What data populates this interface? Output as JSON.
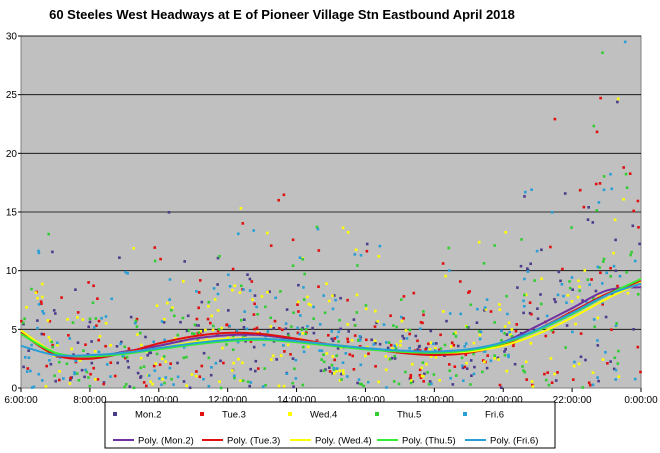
{
  "chart_data": {
    "type": "scatter",
    "title": "60 Steeles West Headways at E of Pioneer Village Stn Eastbound April 2018",
    "xlabel": "",
    "ylabel": "",
    "x_ticks": [
      "6:00:00",
      "8:00:00",
      "10:00:00",
      "12:00:00",
      "14:00:00",
      "16:00:00",
      "18:00:00",
      "20:00:00",
      "22:00:00",
      "0:00:00"
    ],
    "y_ticks": [
      "0",
      "5",
      "10",
      "15",
      "20",
      "25",
      "30"
    ],
    "xlim": [
      "6:00:00",
      "0:00:00"
    ],
    "ylim": [
      0,
      30
    ],
    "grid": "horizontal",
    "plot_background": "#c0c0c0",
    "legend_position": "bottom",
    "series": [
      {
        "name": "Mon.2",
        "color": "#4b3c8c",
        "marker": "diamond"
      },
      {
        "name": "Tue.3",
        "color": "#e01010",
        "marker": "square"
      },
      {
        "name": "Wed.4",
        "color": "#ffff00",
        "marker": "triangle"
      },
      {
        "name": "Thu.5",
        "color": "#33cc33",
        "marker": "triangle"
      },
      {
        "name": "Fri.6",
        "color": "#2a9fd6",
        "marker": "circle"
      }
    ],
    "trendlines": [
      {
        "name": "Poly. (Mon.2)",
        "color": "#7030a0",
        "x": [
          "6:00:00",
          "7:00:00",
          "8:00:00",
          "9:00:00",
          "10:00:00",
          "11:00:00",
          "12:00:00",
          "13:00:00",
          "14:00:00",
          "15:00:00",
          "16:00:00",
          "17:00:00",
          "18:00:00",
          "19:00:00",
          "20:00:00",
          "21:00:00",
          "22:00:00",
          "23:00:00",
          "0:00:00"
        ],
        "y": [
          4.8,
          2.9,
          2.6,
          3.1,
          3.6,
          4.2,
          4.5,
          4.5,
          4.1,
          3.7,
          3.4,
          3.1,
          2.9,
          3.1,
          3.9,
          5.3,
          6.8,
          8.3,
          8.6
        ]
      },
      {
        "name": "Poly. (Tue.3)",
        "color": "#e01010",
        "x": [
          "6:00:00",
          "7:00:00",
          "8:00:00",
          "9:00:00",
          "10:00:00",
          "11:00:00",
          "12:00:00",
          "13:00:00",
          "14:00:00",
          "15:00:00",
          "16:00:00",
          "17:00:00",
          "18:00:00",
          "19:00:00",
          "20:00:00",
          "21:00:00",
          "22:00:00",
          "23:00:00",
          "0:00:00"
        ],
        "y": [
          4.7,
          2.8,
          2.5,
          3.0,
          3.8,
          4.4,
          4.7,
          4.6,
          4.2,
          3.7,
          3.4,
          3.0,
          2.8,
          3.0,
          3.7,
          5.0,
          6.5,
          8.0,
          9.1
        ]
      },
      {
        "name": "Poly. (Wed.4)",
        "color": "#ffff00",
        "x": [
          "6:00:00",
          "7:00:00",
          "8:00:00",
          "9:00:00",
          "10:00:00",
          "11:00:00",
          "12:00:00",
          "13:00:00",
          "14:00:00",
          "15:00:00",
          "16:00:00",
          "17:00:00",
          "18:00:00",
          "19:00:00",
          "20:00:00",
          "21:00:00",
          "22:00:00",
          "23:00:00",
          "0:00:00"
        ],
        "y": [
          4.9,
          3.0,
          2.7,
          3.0,
          3.4,
          3.9,
          4.2,
          4.2,
          4.0,
          3.7,
          3.4,
          3.1,
          3.0,
          3.1,
          3.6,
          4.6,
          6.0,
          7.6,
          9.0
        ]
      },
      {
        "name": "Poly. (Thu.5)",
        "color": "#33ee33",
        "x": [
          "6:00:00",
          "7:00:00",
          "8:00:00",
          "9:00:00",
          "10:00:00",
          "11:00:00",
          "12:00:00",
          "13:00:00",
          "14:00:00",
          "15:00:00",
          "16:00:00",
          "17:00:00",
          "18:00:00",
          "19:00:00",
          "20:00:00",
          "21:00:00",
          "22:00:00",
          "23:00:00",
          "0:00:00"
        ],
        "y": [
          4.6,
          3.0,
          2.7,
          2.9,
          3.3,
          3.7,
          4.0,
          4.1,
          3.9,
          3.6,
          3.3,
          3.1,
          3.0,
          3.2,
          3.8,
          4.9,
          6.3,
          7.9,
          9.3
        ]
      },
      {
        "name": "Poly. (Fri.6)",
        "color": "#2a9fd6",
        "x": [
          "6:00:00",
          "7:00:00",
          "8:00:00",
          "9:00:00",
          "10:00:00",
          "11:00:00",
          "12:00:00",
          "13:00:00",
          "14:00:00",
          "15:00:00",
          "16:00:00",
          "17:00:00",
          "18:00:00",
          "19:00:00",
          "20:00:00",
          "21:00:00",
          "22:00:00",
          "23:00:00",
          "0:00:00"
        ],
        "y": [
          3.6,
          2.8,
          2.8,
          3.0,
          3.4,
          3.8,
          4.1,
          4.2,
          4.0,
          3.7,
          3.4,
          3.2,
          3.1,
          3.3,
          3.9,
          5.0,
          6.4,
          7.9,
          8.9
        ]
      }
    ]
  }
}
